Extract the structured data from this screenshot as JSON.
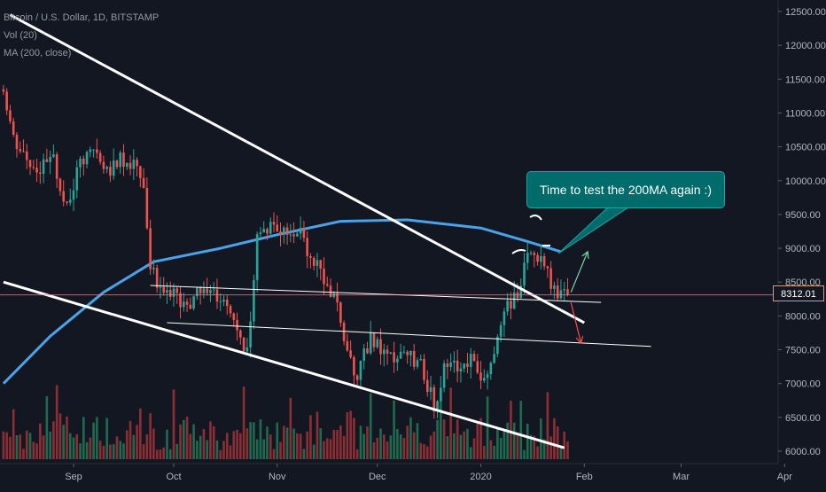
{
  "legend": {
    "symbol": "Bitcoin / U.S. Dollar, 1D, BITSTAMP",
    "volume": "Vol (20)",
    "ma": "MA (200, close)"
  },
  "annotation": "Time to test the 200MA again :)",
  "last_price_label": "8312.01",
  "colors": {
    "background": "#131722",
    "up": "#26a69a",
    "down": "#ef5350",
    "ma_line": "#4aa3e8",
    "trend_line": "#ffffff",
    "callout": "#006b6b"
  },
  "chart_data": {
    "type": "candlestick",
    "y_axis": {
      "ticks": [
        "12500.00",
        "12000.00",
        "11500.00",
        "11000.00",
        "10500.00",
        "10000.00",
        "9500.00",
        "9000.00",
        "8500.00",
        "8000.00",
        "7500.00",
        "7000.00",
        "6500.00",
        "6000.00"
      ],
      "range": [
        5950,
        12650
      ]
    },
    "x_axis": {
      "ticks": [
        "Sep",
        "Oct",
        "Nov",
        "Dec",
        "2020",
        "Feb",
        "Mar",
        "Apr"
      ],
      "range": [
        "2019-08-11",
        "2020-04-10"
      ]
    },
    "close_path": [
      [
        "2019-08-11",
        11350
      ],
      [
        "2019-08-14",
        10600
      ],
      [
        "2019-08-18",
        10300
      ],
      [
        "2019-08-22",
        10150
      ],
      [
        "2019-08-26",
        10300
      ],
      [
        "2019-08-30",
        9600
      ],
      [
        "2019-09-03",
        10250
      ],
      [
        "2019-09-07",
        10450
      ],
      [
        "2019-09-11",
        10150
      ],
      [
        "2019-09-15",
        10300
      ],
      [
        "2019-09-19",
        10200
      ],
      [
        "2019-09-22",
        10000
      ],
      [
        "2019-09-24",
        8700
      ],
      [
        "2019-09-28",
        8250
      ],
      [
        "2019-10-02",
        8300
      ],
      [
        "2019-10-06",
        8100
      ],
      [
        "2019-10-10",
        8500
      ],
      [
        "2019-10-14",
        8300
      ],
      [
        "2019-10-18",
        8100
      ],
      [
        "2019-10-23",
        7450
      ],
      [
        "2019-10-26",
        9250
      ],
      [
        "2019-10-30",
        9350
      ],
      [
        "2019-11-03",
        9250
      ],
      [
        "2019-11-07",
        9300
      ],
      [
        "2019-11-11",
        8800
      ],
      [
        "2019-11-15",
        8600
      ],
      [
        "2019-11-19",
        8150
      ],
      [
        "2019-11-22",
        7550
      ],
      [
        "2019-11-25",
        7100
      ],
      [
        "2019-11-29",
        7700
      ],
      [
        "2019-12-04",
        7350
      ],
      [
        "2019-12-09",
        7450
      ],
      [
        "2019-12-14",
        7250
      ],
      [
        "2019-12-18",
        6700
      ],
      [
        "2019-12-21",
        7200
      ],
      [
        "2019-12-25",
        7250
      ],
      [
        "2019-12-29",
        7400
      ],
      [
        "2020-01-02",
        7000
      ],
      [
        "2020-01-05",
        7500
      ],
      [
        "2020-01-08",
        8150
      ],
      [
        "2020-01-12",
        8300
      ],
      [
        "2020-01-14",
        8800
      ],
      [
        "2020-01-17",
        8950
      ],
      [
        "2020-01-20",
        8700
      ],
      [
        "2020-01-23",
        8400
      ],
      [
        "2020-01-27",
        8312.01
      ]
    ],
    "ma_200_path": [
      [
        "2019-08-11",
        7000
      ],
      [
        "2019-08-25",
        7700
      ],
      [
        "2019-09-10",
        8350
      ],
      [
        "2019-09-25",
        8800
      ],
      [
        "2019-10-15",
        9000
      ],
      [
        "2019-11-01",
        9200
      ],
      [
        "2019-11-20",
        9400
      ],
      [
        "2019-12-10",
        9420
      ],
      [
        "2020-01-01",
        9300
      ],
      [
        "2020-01-15",
        9100
      ],
      [
        "2020-01-25",
        8950
      ]
    ],
    "trend_lines": [
      {
        "name": "upper-descending",
        "from": [
          "2019-08-13",
          12450
        ],
        "to": [
          "2020-02-01",
          7900
        ]
      },
      {
        "name": "lower-descending",
        "from": [
          "2019-08-11",
          8500
        ],
        "to": [
          "2020-01-26",
          6050
        ]
      },
      {
        "name": "resistance-flat",
        "from": [
          "2019-09-24",
          8450
        ],
        "to": [
          "2020-02-06",
          8200
        ]
      },
      {
        "name": "support-flat",
        "from": [
          "2019-09-29",
          7900
        ],
        "to": [
          "2020-02-21",
          7550
        ]
      }
    ],
    "projection_arrows": [
      {
        "direction": "up",
        "from": [
          "2020-01-28",
          8350
        ],
        "to": [
          "2020-02-02",
          8950
        ]
      },
      {
        "direction": "down",
        "from": [
          "2020-01-28",
          8200
        ],
        "to": [
          "2020-01-31",
          7600
        ]
      }
    ],
    "last_price": 8312.01
  }
}
